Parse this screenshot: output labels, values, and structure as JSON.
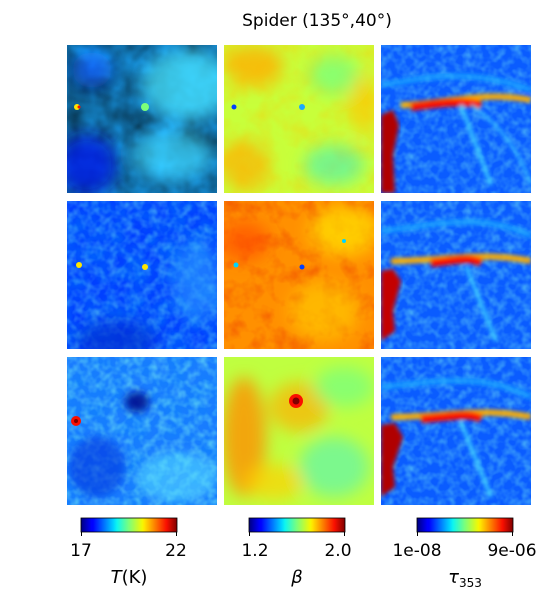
{
  "chart_data": {
    "type": "heatmap",
    "title": "Spider (135°,40°)",
    "layout": "3x3 grid of sky-map panels",
    "colormap": "jet",
    "columns": [
      {
        "quantity": "T(K)",
        "label_main": "T",
        "label_unit": "(K)",
        "range": [
          17,
          22
        ],
        "tick_labels": [
          "17",
          "22"
        ]
      },
      {
        "quantity": "β",
        "label_main": "β",
        "label_unit": "",
        "range": [
          1.2,
          2.0
        ],
        "tick_labels": [
          "1.2",
          "2.0"
        ]
      },
      {
        "quantity": "τ353",
        "label_main": "τ",
        "label_sub": "353",
        "range": [
          1e-08,
          9e-06
        ],
        "tick_labels": [
          "1e-08",
          "9e-06"
        ]
      }
    ],
    "rows": 3,
    "grid": false,
    "axes_visible": false
  }
}
